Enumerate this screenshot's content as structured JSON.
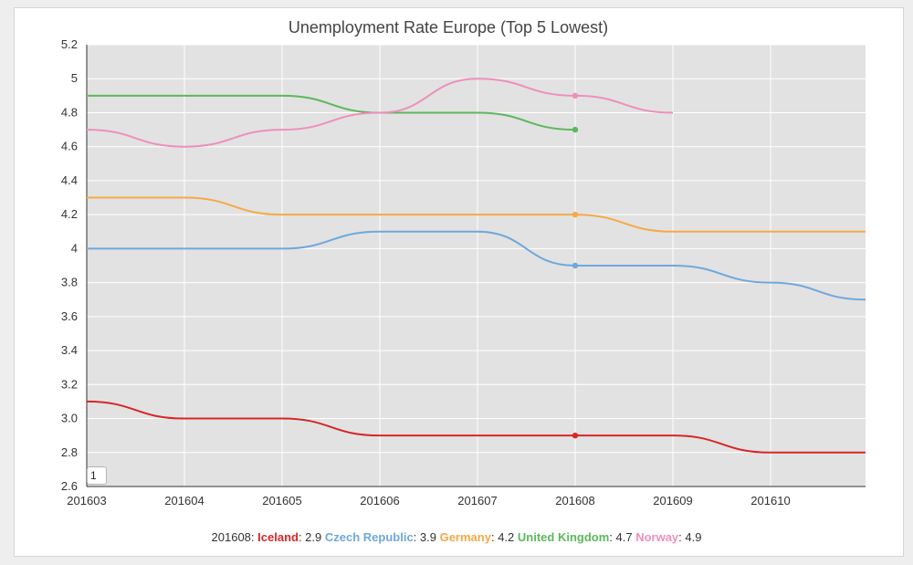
{
  "chart_data": {
    "type": "line",
    "title": "Unemployment Rate Europe (Top 5 Lowest)",
    "x": [
      "201603",
      "201604",
      "201605",
      "201606",
      "201607",
      "201608",
      "201609",
      "201610",
      "201611"
    ],
    "x_tick_labels": [
      "201603",
      "201604",
      "201605",
      "201606",
      "201607",
      "201608",
      "201609",
      "201610"
    ],
    "ylim": [
      2.6,
      5.2
    ],
    "y_ticks": [
      2.6,
      2.8,
      3.0,
      3.2,
      3.4,
      3.6,
      3.8,
      4,
      4.2,
      4.4,
      4.6,
      4.8,
      5,
      5.2
    ],
    "y_tick_labels": [
      "2.6",
      "2.8",
      "3.0",
      "3.2",
      "3.4",
      "3.6",
      "3.8",
      "4",
      "4.2",
      "4.4",
      "4.6",
      "4.8",
      "5",
      "5.2"
    ],
    "grid": true,
    "background_color": "#e2e2e2",
    "highlight_x": "201608",
    "series": [
      {
        "name": "Iceland",
        "color": "#d62728",
        "values": [
          3.1,
          3.0,
          3.0,
          2.9,
          2.9,
          2.9,
          2.9,
          2.8,
          2.8
        ]
      },
      {
        "name": "Czech Republic",
        "color": "#6fa8dc",
        "values": [
          4.0,
          4.0,
          4.0,
          4.1,
          4.1,
          3.9,
          3.9,
          3.8,
          3.7
        ]
      },
      {
        "name": "Germany",
        "color": "#f5a947",
        "values": [
          4.3,
          4.3,
          4.2,
          4.2,
          4.2,
          4.2,
          4.1,
          4.1,
          4.1
        ]
      },
      {
        "name": "United Kingdom",
        "color": "#5cb85c",
        "values": [
          4.9,
          4.9,
          4.9,
          4.8,
          4.8,
          4.7,
          null,
          null,
          null
        ]
      },
      {
        "name": "Norway",
        "color": "#ee8fbd",
        "values": [
          4.7,
          4.6,
          4.7,
          4.8,
          5.0,
          4.9,
          4.8,
          null,
          null
        ]
      }
    ],
    "legend": {
      "prefix": "201608:",
      "entries": [
        {
          "name": "Iceland",
          "value": "2.9"
        },
        {
          "name": "Czech Republic",
          "value": "3.9"
        },
        {
          "name": "Germany",
          "value": "4.2"
        },
        {
          "name": "United Kingdom",
          "value": "4.7"
        },
        {
          "name": "Norway",
          "value": "4.9"
        }
      ]
    }
  },
  "controls": {
    "roll_period": "1"
  }
}
